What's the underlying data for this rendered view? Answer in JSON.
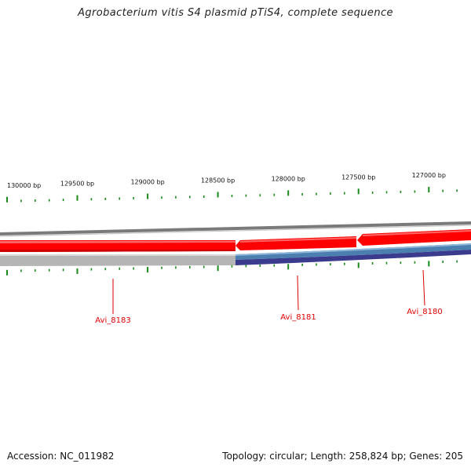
{
  "title": "Agrobacterium vitis S4 plasmid pTiS4, complete sequence",
  "map": {
    "scale_unit": "bp",
    "visible_range_bp": [
      126700,
      130050
    ],
    "major_tick_labels": [
      "130000 bp",
      "129500 bp",
      "129000 bp",
      "128500 bp",
      "128000 bp",
      "127500 bp",
      "127000 bp"
    ],
    "tick_color": "#1a8a1a",
    "backbone_color": "#808080",
    "genes": [
      {
        "label": "Avi_8183",
        "strand": "-",
        "color": "#ff0000",
        "label_color": "#dd0000"
      },
      {
        "label": "Avi_8181",
        "strand": "-",
        "color": "#ff0000",
        "label_color": "#dd0000"
      },
      {
        "label": "Avi_8180",
        "strand": "-",
        "color": "#ff0000",
        "label_color": "#dd0000"
      }
    ],
    "cds_track_colors": [
      "#b0b0b0",
      "#4a7fb0",
      "#3a3a8a"
    ]
  },
  "footer": {
    "accession": "Accession: NC_011982",
    "summary": "Topology: circular; Length: 258,824 bp; Genes: 205"
  }
}
